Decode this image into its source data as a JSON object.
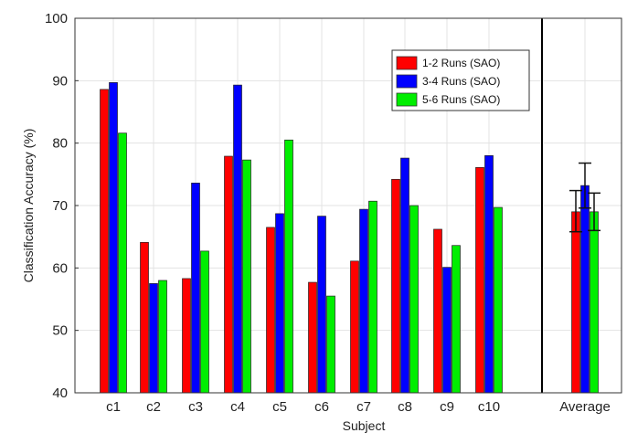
{
  "chart_data": {
    "type": "bar",
    "title": "",
    "xlabel": "Subject",
    "ylabel": "Classification Accuracy (%)",
    "ylim": [
      40,
      100
    ],
    "yticks": [
      40,
      50,
      60,
      70,
      80,
      90,
      100
    ],
    "grid": true,
    "legend_position": "top-right",
    "categories": [
      "c1",
      "c2",
      "c3",
      "c4",
      "c5",
      "c6",
      "c7",
      "c8",
      "c9",
      "c10",
      "Average"
    ],
    "series": [
      {
        "name": "1-2 Runs (SAO)",
        "color": "#ff0000",
        "values": [
          88.6,
          64.1,
          58.3,
          77.9,
          66.5,
          57.7,
          61.1,
          74.2,
          66.2,
          76.1,
          69.0
        ]
      },
      {
        "name": "3-4 Runs (SAO)",
        "color": "#0000ff",
        "values": [
          89.7,
          57.5,
          73.6,
          89.3,
          68.7,
          68.3,
          69.4,
          77.6,
          60.1,
          78.0,
          73.2
        ]
      },
      {
        "name": "5-6 Runs (SAO)",
        "color": "#00ee00",
        "values": [
          81.6,
          58.0,
          62.7,
          77.3,
          80.5,
          55.5,
          70.7,
          70.0,
          63.6,
          69.7,
          69.0
        ]
      }
    ],
    "error_bars": {
      "category": "Average",
      "lower": [
        65.8,
        69.6,
        66.0
      ],
      "upper": [
        72.4,
        76.8,
        72.0
      ]
    },
    "separator_after_category": "c10"
  }
}
